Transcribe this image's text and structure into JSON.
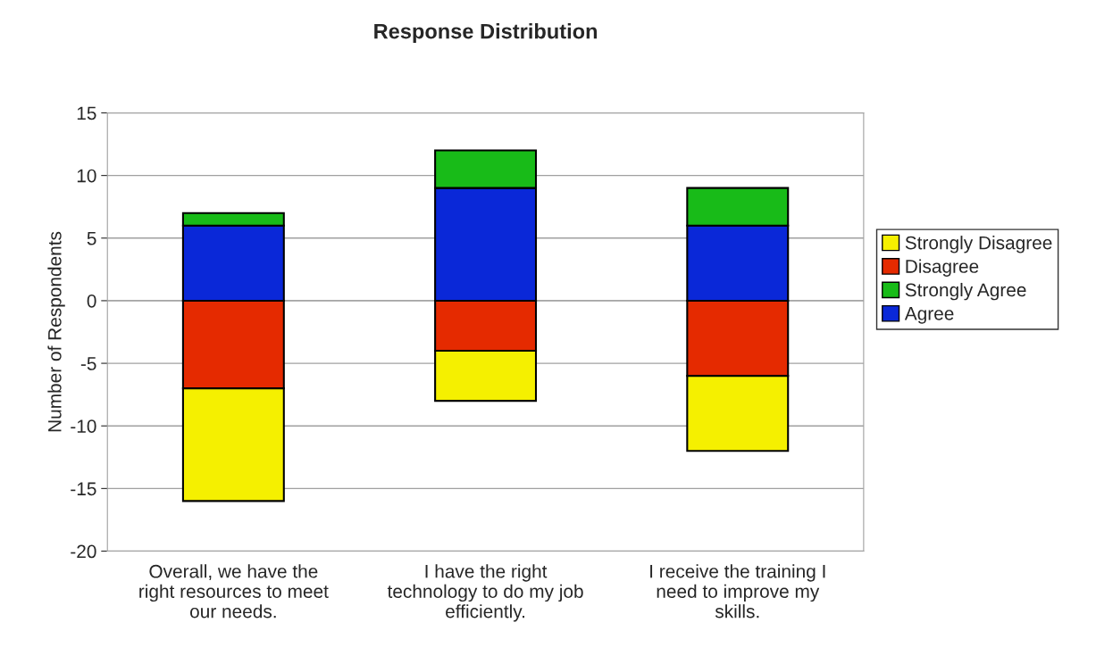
{
  "chart_data": {
    "type": "bar",
    "title": "Response Distribution",
    "ylabel": "Number of Respondents",
    "categories": [
      "Overall, we have the right resources to meet our needs.",
      "I have the right technology to do my job efficiently.",
      "I receive the training I need to improve my skills."
    ],
    "series": [
      {
        "name": "Agree",
        "color": "#0a28d8",
        "values": [
          6,
          9,
          6
        ]
      },
      {
        "name": "Strongly Agree",
        "color": "#18bb18",
        "values": [
          1,
          3,
          3
        ]
      },
      {
        "name": "Disagree",
        "color": "#e52a00",
        "values": [
          -7,
          -4,
          -6
        ]
      },
      {
        "name": "Strongly Disagree",
        "color": "#f5f000",
        "values": [
          -9,
          -4,
          -6
        ]
      }
    ],
    "stacked": true,
    "ylim": [
      -20,
      15
    ],
    "yticks": [
      -20,
      -15,
      -10,
      -5,
      0,
      5,
      10,
      15
    ],
    "grid": "y",
    "legend": "right"
  }
}
